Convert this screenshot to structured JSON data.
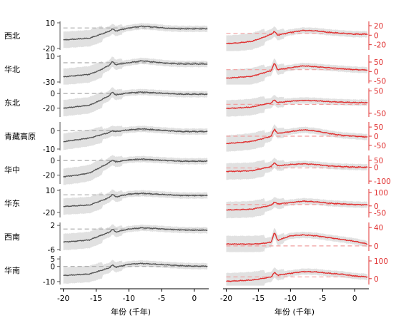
{
  "chart_data": {
    "type": "line",
    "xlabel": "年份 (千年)",
    "x_ticks": [
      -20,
      -15,
      -10,
      -5,
      0
    ],
    "xlim": [
      -20.5,
      2.2
    ],
    "colors": {
      "left": "#555555",
      "right": "#e03030",
      "band": "#dcdcdc"
    },
    "regions": [
      {
        "name": "西北",
        "left": {
          "ticks": [
            10,
            -20
          ],
          "ylim": [
            -20,
            10
          ],
          "ref": 4,
          "x": [
            -20,
            -18,
            -16,
            -14.5,
            -13,
            -12.5,
            -12,
            -10,
            -8,
            -6,
            -4,
            -2,
            0,
            2
          ],
          "y": [
            -10,
            -9,
            -8,
            -4,
            0,
            3,
            0.5,
            4,
            6,
            5,
            3.5,
            3,
            3,
            3
          ]
        },
        "right": {
          "ticks": [
            20,
            0,
            -20
          ],
          "ylim": [
            -28,
            26
          ],
          "ref": 4,
          "x": [
            -20,
            -18,
            -16,
            -14.5,
            -13,
            -12.5,
            -12,
            -10,
            -8,
            -6,
            -4,
            -2,
            0,
            2
          ],
          "y": [
            -18,
            -16,
            -13,
            -6,
            2,
            8,
            0,
            6,
            10,
            9,
            6,
            4,
            2,
            2
          ]
        }
      },
      {
        "name": "华北",
        "left": {
          "ticks": [
            10,
            -30
          ],
          "ylim": [
            -30,
            10
          ],
          "ref": 0,
          "x": [
            -20,
            -18,
            -16,
            -14.5,
            -13,
            -12.5,
            -12,
            -10,
            -8,
            -6,
            -4,
            -2,
            0,
            2
          ],
          "y": [
            -22,
            -20,
            -18,
            -12,
            -4,
            2,
            -3,
            0,
            3,
            1,
            -1,
            -2,
            -2,
            -2
          ]
        },
        "right": {
          "ticks": [
            50,
            0,
            -50
          ],
          "ylim": [
            -55,
            80
          ],
          "ref": 10,
          "x": [
            -20,
            -18,
            -16,
            -14.5,
            -13,
            -12.5,
            -12,
            -10,
            -8,
            -6,
            -4,
            -2,
            0,
            2
          ],
          "y": [
            -35,
            -30,
            -25,
            -10,
            5,
            45,
            10,
            20,
            30,
            25,
            20,
            15,
            10,
            8
          ]
        }
      },
      {
        "name": "东北",
        "left": {
          "ticks": [
            0,
            -20
          ],
          "ylim": [
            -30,
            5
          ],
          "ref": 0,
          "x": [
            -20,
            -18,
            -16,
            -14.5,
            -13,
            -12.5,
            -12,
            -10,
            -8,
            -6,
            -4,
            -2,
            0,
            2
          ],
          "y": [
            -20,
            -18,
            -16,
            -10,
            -3,
            2,
            -2,
            1,
            2,
            1,
            0,
            -1,
            -1,
            -1
          ]
        },
        "right": {
          "ticks": [
            50,
            -50
          ],
          "ylim": [
            -60,
            55
          ],
          "ref": -10,
          "x": [
            -20,
            -18,
            -16,
            -14.5,
            -13,
            -12.5,
            -12,
            -10,
            -8,
            -6,
            -4,
            -2,
            0,
            2
          ],
          "y": [
            -28,
            -26,
            -22,
            -12,
            -4,
            10,
            -2,
            4,
            8,
            6,
            2,
            0,
            -2,
            -2
          ]
        }
      },
      {
        "name": "青藏高原",
        "left": {
          "ticks": [
            0,
            -10
          ],
          "ylim": [
            -10,
            4
          ],
          "ref": 0,
          "x": [
            -20,
            -18,
            -16,
            -14.5,
            -13,
            -12.5,
            -12,
            -10,
            -8,
            -6,
            -4,
            -2,
            0,
            2
          ],
          "y": [
            -6,
            -5,
            -4,
            -2.5,
            -1,
            0,
            -0.5,
            0.5,
            1,
            0.5,
            0,
            -0.5,
            -0.5,
            -0.5
          ]
        },
        "right": {
          "ticks": [
            50,
            0,
            -50
          ],
          "ylim": [
            -70,
            70
          ],
          "ref": 0,
          "x": [
            -20,
            -18,
            -16,
            -14.5,
            -13,
            -12.5,
            -12,
            -10,
            -8,
            -6,
            -4,
            -2,
            0,
            2
          ],
          "y": [
            -40,
            -35,
            -28,
            -15,
            0,
            40,
            15,
            25,
            35,
            28,
            15,
            5,
            0,
            -5
          ]
        }
      },
      {
        "name": "华中",
        "left": {
          "ticks": [
            0,
            -20
          ],
          "ylim": [
            -30,
            5
          ],
          "ref": 0,
          "x": [
            -20,
            -18,
            -16,
            -14.5,
            -13,
            -12.5,
            -12,
            -10,
            -8,
            -6,
            -4,
            -2,
            0,
            2
          ],
          "y": [
            -22,
            -20,
            -17,
            -10,
            -3,
            1,
            -2,
            1,
            2,
            1,
            0,
            -1,
            -1,
            -1
          ]
        },
        "right": {
          "ticks": [
            50,
            0,
            -100
          ],
          "ylim": [
            -110,
            75
          ],
          "ref": -5,
          "x": [
            -20,
            -18,
            -16,
            -14.5,
            -13,
            -12.5,
            -12,
            -10,
            -8,
            -6,
            -4,
            -2,
            0,
            2
          ],
          "y": [
            -30,
            -28,
            -25,
            -10,
            5,
            35,
            10,
            20,
            25,
            20,
            10,
            5,
            2,
            0
          ]
        }
      },
      {
        "name": "华东",
        "left": {
          "ticks": [
            10,
            -20
          ],
          "ylim": [
            -25,
            10
          ],
          "ref": 4,
          "x": [
            -20,
            -18,
            -16,
            -14.5,
            -13,
            -12.5,
            -12,
            -10,
            -8,
            -6,
            -4,
            -2,
            0,
            2
          ],
          "y": [
            -12,
            -11,
            -10,
            -5,
            0,
            5,
            1,
            5,
            6,
            5,
            4,
            3,
            3,
            3
          ]
        },
        "right": {
          "ticks": [
            100,
            0,
            -50
          ],
          "ylim": [
            -75,
            115
          ],
          "ref": 10,
          "x": [
            -20,
            -18,
            -16,
            -14.5,
            -13,
            -12.5,
            -12,
            -10,
            -8,
            -6,
            -4,
            -2,
            0,
            2
          ],
          "y": [
            -30,
            -28,
            -24,
            -10,
            5,
            30,
            15,
            25,
            35,
            30,
            20,
            15,
            10,
            8
          ]
        }
      },
      {
        "name": "西南",
        "left": {
          "ticks": [
            2,
            -6
          ],
          "ylim": [
            -6,
            2.5
          ],
          "ref": 0.8,
          "x": [
            -20,
            -18,
            -16,
            -14.5,
            -13,
            -12.5,
            -12,
            -10,
            -8,
            -6,
            -4,
            -2,
            0,
            2
          ],
          "y": [
            -3.5,
            -3.2,
            -2.8,
            -1.5,
            -0.3,
            0.8,
            -0.2,
            0.8,
            1.2,
            1,
            0.7,
            0.5,
            0.4,
            0.4
          ]
        },
        "right": {
          "ticks": [
            40,
            0
          ],
          "ylim": [
            -8,
            48
          ],
          "ref": 0,
          "x": [
            -20,
            -18,
            -16,
            -14.5,
            -13,
            -12.5,
            -12,
            -10,
            -8,
            -6,
            -4,
            -2,
            0,
            2
          ],
          "y": [
            4,
            4,
            4,
            5,
            8,
            30,
            12,
            22,
            24,
            22,
            18,
            14,
            10,
            4
          ]
        }
      },
      {
        "name": "华南",
        "left": {
          "ticks": [
            5,
            0,
            -10
          ],
          "ylim": [
            -11,
            6
          ],
          "ref": 0,
          "x": [
            -20,
            -18,
            -16,
            -14.5,
            -13,
            -12.5,
            -12,
            -10,
            -8,
            -6,
            -4,
            -2,
            0,
            2
          ],
          "y": [
            -6,
            -5.5,
            -5,
            -3,
            -1,
            1,
            -0.5,
            1.5,
            2,
            1.5,
            1,
            0.5,
            0.2,
            0.2
          ]
        },
        "right": {
          "ticks": [
            100,
            0
          ],
          "ylim": [
            -25,
            120
          ],
          "ref": 10,
          "x": [
            -20,
            -18,
            -16,
            -14.5,
            -13,
            -12.5,
            -12,
            -10,
            -8,
            -6,
            -4,
            -2,
            0,
            2
          ],
          "y": [
            -15,
            -12,
            -8,
            0,
            10,
            35,
            20,
            30,
            40,
            38,
            30,
            25,
            15,
            10
          ]
        }
      }
    ]
  }
}
